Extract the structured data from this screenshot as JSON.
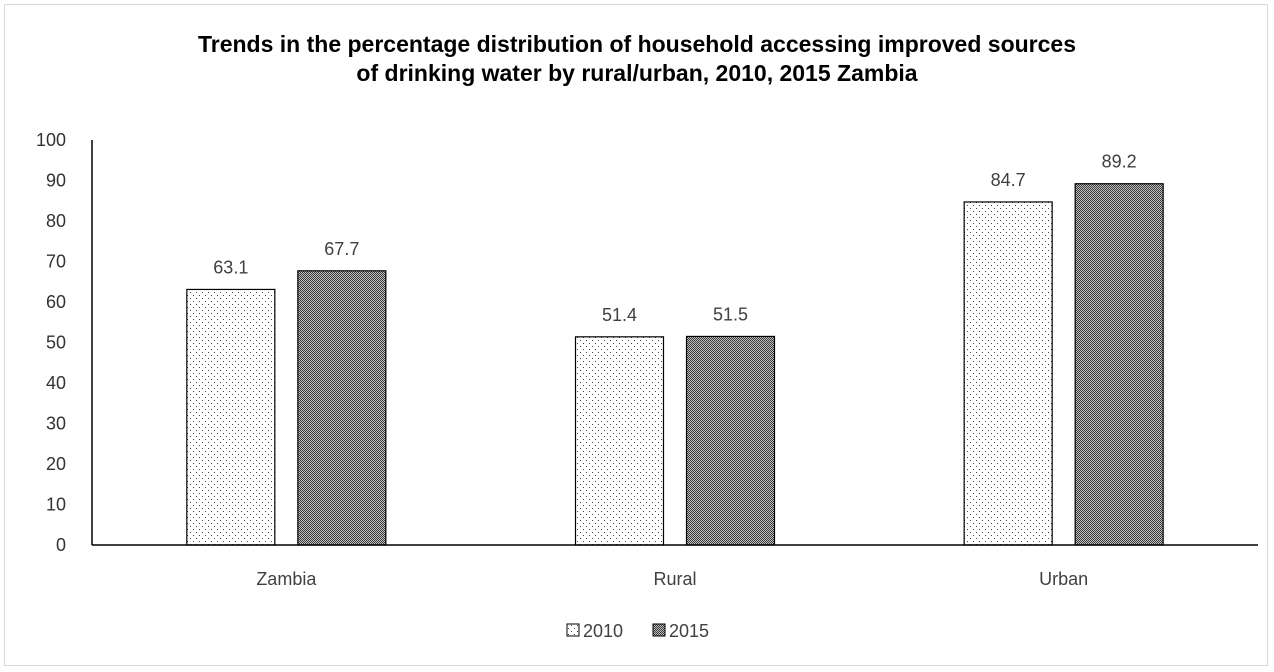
{
  "chart_data": {
    "type": "bar",
    "title_line1": "Trends in the percentage distribution of household accessing improved sources",
    "title_line2": "of drinking water by rural/urban, 2010, 2015 Zambia",
    "categories": [
      "Zambia",
      "Rural",
      "Urban"
    ],
    "series": [
      {
        "name": "2010",
        "values": [
          63.1,
          51.4,
          84.7
        ],
        "pattern": "dots-sparse"
      },
      {
        "name": "2015",
        "values": [
          67.7,
          51.5,
          89.2
        ],
        "pattern": "dense-checker"
      }
    ],
    "ylim": [
      0,
      100
    ],
    "yticks": [
      0,
      10,
      20,
      30,
      40,
      50,
      60,
      70,
      80,
      90,
      100
    ],
    "xlabel": "",
    "ylabel": "",
    "grid": false,
    "legend_position": "bottom-center",
    "data_labels": true
  }
}
